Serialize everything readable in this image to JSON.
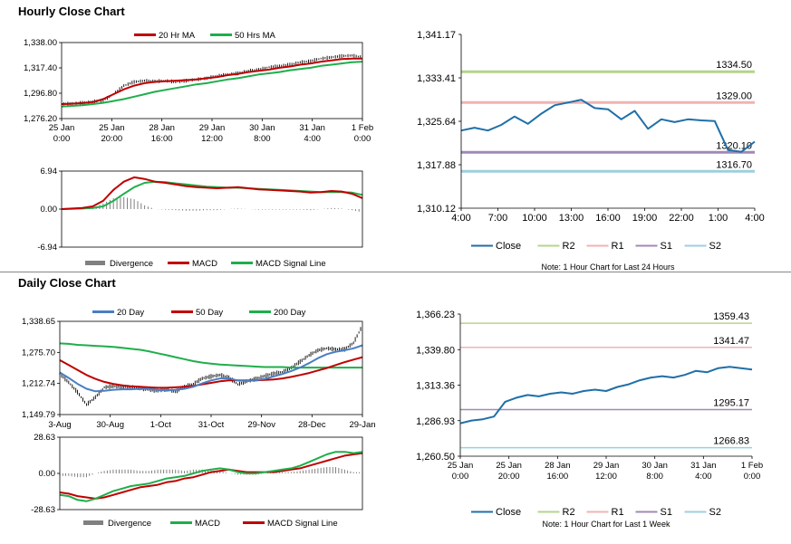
{
  "sections": {
    "hourly_title": "Hourly Close Chart",
    "daily_title": "Daily Close Chart"
  },
  "colors": {
    "price": "#000000",
    "red": "#c00000",
    "green": "#1fae4b",
    "blue": "#4a7ec2",
    "close": "#1f6fa8",
    "r2": "#b5d48c",
    "r1": "#f0b3b3",
    "s1": "#a089b7",
    "s2": "#9ecfe0",
    "divergence": "#808080"
  },
  "chart_data": [
    {
      "id": "hourly_price",
      "type": "line",
      "legend": [
        "20 Hr MA",
        "50 Hrs MA"
      ],
      "y_ticks": [
        "1,338.00",
        "1,317.40",
        "1,296.80",
        "1,276.20"
      ],
      "ylim": [
        1276.2,
        1338.0
      ],
      "x_ticks": [
        [
          "25 Jan",
          "0:00"
        ],
        [
          "25 Jan",
          "20:00"
        ],
        [
          "28 Jan",
          "16:00"
        ],
        [
          "29 Jan",
          "12:00"
        ],
        [
          "30 Jan",
          "8:00"
        ],
        [
          "31 Jan",
          "4:00"
        ],
        [
          "1 Feb",
          "0:00"
        ]
      ],
      "close": [
        1288,
        1288.5,
        1289,
        1290,
        1291,
        1296,
        1303,
        1306,
        1307,
        1306.5,
        1307,
        1306,
        1307,
        1308,
        1309,
        1311,
        1312,
        1313,
        1315,
        1316,
        1318,
        1319,
        1320,
        1322,
        1323,
        1325,
        1326,
        1327,
        1327.5,
        1326
      ],
      "ma20": [
        1288,
        1288.3,
        1288.8,
        1289.5,
        1292,
        1296,
        1300,
        1303,
        1305,
        1306,
        1306.5,
        1307,
        1307.5,
        1308,
        1309,
        1310,
        1311.5,
        1312.5,
        1314,
        1315,
        1316,
        1317.5,
        1318.5,
        1320,
        1321,
        1322.5,
        1323.5,
        1324.5,
        1325,
        1325
      ],
      "ma50": [
        1286,
        1286.5,
        1287,
        1288,
        1289,
        1290.5,
        1292,
        1294,
        1296,
        1298,
        1299.5,
        1301,
        1302.5,
        1304,
        1305,
        1306.5,
        1308,
        1309,
        1310.5,
        1312,
        1313,
        1314,
        1315.5,
        1316.5,
        1317.5,
        1319,
        1320,
        1321,
        1322,
        1322.5
      ]
    },
    {
      "id": "hourly_macd",
      "type": "line",
      "legend": [
        "Divergence",
        "MACD",
        "MACD Signal Line"
      ],
      "y_ticks": [
        "6.94",
        "0.00",
        "-6.94"
      ],
      "ylim": [
        -6.94,
        6.94
      ],
      "macd": [
        0,
        0.1,
        0.2,
        0.5,
        1.5,
        3.5,
        5,
        5.8,
        5.5,
        5,
        4.8,
        4.5,
        4.2,
        4,
        3.9,
        3.8,
        3.9,
        4,
        3.8,
        3.6,
        3.5,
        3.4,
        3.3,
        3.2,
        3,
        3.1,
        3.3,
        3.2,
        2.8,
        2
      ],
      "signal": [
        0,
        0.05,
        0.1,
        0.2,
        0.5,
        1.5,
        2.8,
        4,
        4.8,
        5,
        4.9,
        4.7,
        4.5,
        4.3,
        4.1,
        4,
        3.9,
        3.9,
        3.8,
        3.7,
        3.6,
        3.5,
        3.4,
        3.3,
        3.2,
        3.1,
        3.1,
        3.1,
        3,
        2.6
      ],
      "divergence": [
        0,
        0.05,
        0.1,
        0.3,
        1,
        2,
        2.2,
        1.8,
        0.7,
        0,
        -0.1,
        -0.2,
        -0.3,
        -0.3,
        -0.2,
        -0.2,
        0,
        0.1,
        0,
        -0.1,
        -0.1,
        -0.1,
        -0.1,
        -0.1,
        -0.2,
        0,
        0.2,
        0.1,
        -0.2,
        -0.6
      ]
    },
    {
      "id": "hourly_pivot",
      "type": "line",
      "title_note": "Note: 1 Hour Chart for Last 24 Hours",
      "y_ticks": [
        "1,341.17",
        "1,333.41",
        "1,325.64",
        "1,317.88",
        "1,310.12"
      ],
      "ylim": [
        1310.12,
        1341.17
      ],
      "x_ticks": [
        "4:00",
        "7:00",
        "10:00",
        "13:00",
        "16:00",
        "19:00",
        "22:00",
        "1:00",
        "4:00"
      ],
      "close": [
        1324,
        1324.5,
        1324,
        1325,
        1326.5,
        1325.2,
        1327,
        1328.5,
        1329,
        1329.5,
        1328,
        1327.8,
        1326,
        1327.5,
        1324.3,
        1326,
        1325.5,
        1326,
        1325.8,
        1325.7,
        1320.5,
        1320.2,
        1322
      ],
      "levels": [
        {
          "name": "R2",
          "value": 1334.5,
          "label": "1334.50"
        },
        {
          "name": "R1",
          "value": 1329.0,
          "label": "1329.00"
        },
        {
          "name": "S1",
          "value": 1320.1,
          "label": "1320.10"
        },
        {
          "name": "S2",
          "value": 1316.7,
          "label": "1316.70"
        }
      ],
      "legend": [
        "Close",
        "R2",
        "R1",
        "S1",
        "S2"
      ]
    },
    {
      "id": "daily_price",
      "type": "line",
      "legend": [
        "20 Day",
        "50 Day",
        "200 Day"
      ],
      "y_ticks": [
        "1,338.65",
        "1,275.70",
        "1,212.74",
        "1,149.79"
      ],
      "ylim": [
        1149.79,
        1338.65
      ],
      "x_ticks": [
        "3-Aug",
        "30-Aug",
        "1-Oct",
        "31-Oct",
        "29-Nov",
        "28-Dec",
        "29-Jan"
      ],
      "close": [
        1232,
        1215,
        1195,
        1170,
        1185,
        1205,
        1207,
        1206,
        1205,
        1203,
        1200,
        1198,
        1201,
        1196,
        1206,
        1212,
        1223,
        1227,
        1230,
        1225,
        1211,
        1217,
        1222,
        1228,
        1233,
        1236,
        1245,
        1257,
        1270,
        1280,
        1284,
        1282,
        1282,
        1295,
        1330
      ],
      "ma20": [
        1235,
        1224,
        1212,
        1202,
        1197,
        1198,
        1200,
        1201,
        1201,
        1202,
        1202,
        1200,
        1199,
        1200,
        1202,
        1206,
        1213,
        1219,
        1223,
        1223,
        1219,
        1218,
        1219,
        1222,
        1227,
        1232,
        1238,
        1245,
        1254,
        1264,
        1272,
        1277,
        1280,
        1284,
        1290
      ],
      "ma50": [
        1260,
        1250,
        1240,
        1230,
        1222,
        1216,
        1212,
        1209,
        1207,
        1206,
        1205,
        1204,
        1204,
        1205,
        1206,
        1208,
        1211,
        1214,
        1217,
        1219,
        1219,
        1219,
        1219,
        1220,
        1221,
        1223,
        1226,
        1230,
        1234,
        1239,
        1244,
        1250,
        1256,
        1261,
        1266
      ],
      "ma200": [
        1294,
        1293,
        1291,
        1290,
        1289,
        1288,
        1287,
        1285,
        1283,
        1281,
        1278,
        1274,
        1270,
        1266,
        1262,
        1258,
        1255,
        1253,
        1251,
        1250,
        1249,
        1248,
        1247,
        1246,
        1246,
        1246,
        1245,
        1245,
        1245,
        1245,
        1245,
        1245,
        1245,
        1245,
        1245
      ]
    },
    {
      "id": "daily_macd",
      "type": "line",
      "legend": [
        "Divergence",
        "MACD",
        "MACD Signal Line"
      ],
      "y_ticks": [
        "28.63",
        "0.00",
        "-28.63"
      ],
      "ylim": [
        -28.63,
        28.63
      ],
      "macd": [
        -17,
        -18,
        -21,
        -22,
        -20,
        -17,
        -14,
        -12,
        -10,
        -9,
        -8,
        -6,
        -4,
        -3,
        -2,
        0,
        2,
        3,
        4,
        3,
        1,
        0,
        0,
        1,
        2,
        3,
        4,
        6,
        9,
        12,
        15,
        17,
        17,
        16,
        17
      ],
      "signal": [
        -15,
        -16,
        -18,
        -19,
        -20,
        -19,
        -17,
        -15,
        -13,
        -11,
        -10,
        -9,
        -7,
        -6,
        -4,
        -3,
        -1,
        1,
        2,
        3,
        2,
        1,
        1,
        1,
        1,
        2,
        3,
        4,
        6,
        8,
        10,
        12,
        14,
        15,
        16
      ],
      "divergence": [
        -2,
        -2,
        -3,
        -3,
        0,
        2,
        3,
        3,
        3,
        2,
        2,
        3,
        3,
        3,
        2,
        3,
        3,
        2,
        2,
        0,
        -1,
        -1,
        -1,
        0,
        1,
        1,
        1,
        2,
        3,
        4,
        5,
        5,
        3,
        1,
        1
      ]
    },
    {
      "id": "daily_pivot",
      "type": "line",
      "title_note": "Note: 1 Hour Chart for Last 1 Week",
      "y_ticks": [
        "1,366.23",
        "1,339.80",
        "1,313.36",
        "1,286.93",
        "1,260.50"
      ],
      "ylim": [
        1260.5,
        1366.23
      ],
      "x_ticks": [
        [
          "25 Jan",
          "0:00"
        ],
        [
          "25 Jan",
          "20:00"
        ],
        [
          "28 Jan",
          "16:00"
        ],
        [
          "29 Jan",
          "12:00"
        ],
        [
          "30 Jan",
          "8:00"
        ],
        [
          "31 Jan",
          "4:00"
        ],
        [
          "1 Feb",
          "0:00"
        ]
      ],
      "close": [
        1285,
        1287,
        1288,
        1290,
        1301,
        1304,
        1306,
        1305,
        1307,
        1308,
        1307,
        1309,
        1310,
        1309,
        1312,
        1314,
        1317,
        1319,
        1320,
        1319,
        1321,
        1324,
        1323,
        1326,
        1327,
        1326,
        1325
      ],
      "levels": [
        {
          "name": "R2",
          "value": 1359.43,
          "label": "1359.43"
        },
        {
          "name": "R1",
          "value": 1341.47,
          "label": "1341.47"
        },
        {
          "name": "S1",
          "value": 1295.17,
          "label": "1295.17"
        },
        {
          "name": "S2",
          "value": 1266.83,
          "label": "1266.83"
        }
      ],
      "legend": [
        "Close",
        "R2",
        "R1",
        "S1",
        "S2"
      ]
    }
  ]
}
